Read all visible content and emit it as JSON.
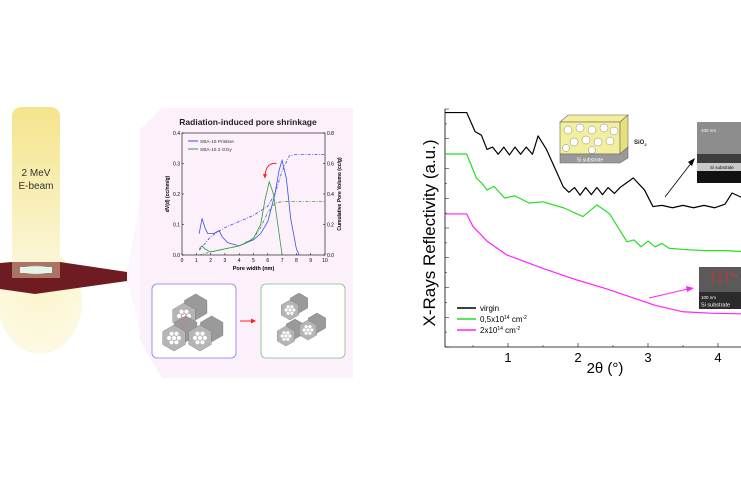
{
  "beam": {
    "line1": "2 MeV",
    "line2": "E-beam"
  },
  "colors": {
    "pristine": "#3a4ef0",
    "irradiated": "#2f9a3a",
    "virgin": "#000000",
    "low_fluence": "#22e022",
    "high_fluence": "#ff22ff",
    "arrow": "#ff2020",
    "panel": "#fcf0fa",
    "plane": "#6e1c22"
  },
  "chart_data": [
    {
      "type": "line",
      "title": "Radiation-induced pore shrinkage",
      "xlabel": "Pore width (nm)",
      "ylabel": "dV(d) (cc/nm/g)",
      "y2label": "Cumulative Pore Volume (cc/g)",
      "xlim": [
        0,
        10
      ],
      "ylim": [
        0,
        0.4
      ],
      "y2lim": [
        0,
        0.8
      ],
      "xticks": [
        "0",
        "1",
        "2",
        "3",
        "4",
        "5",
        "6",
        "7",
        "8",
        "9",
        "10"
      ],
      "yticks": [
        "0.0",
        "0.1",
        "0.2",
        "0.3",
        "0.4"
      ],
      "y2ticks": [
        "0.0",
        "0.2",
        "0.4",
        "0.6",
        "0.8"
      ],
      "legend_placement": "top-left",
      "series": [
        {
          "name": "SBA-15 Pristine",
          "axis": "left",
          "style": "solid",
          "color": "#3a4ef0",
          "x": [
            1.2,
            1.4,
            1.6,
            1.8,
            2.2,
            2.6,
            2.8,
            3.2,
            4,
            4.5,
            5,
            5.5,
            6,
            6.5,
            6.8,
            7,
            7.3,
            7.6,
            8,
            8.2
          ],
          "y": [
            0.07,
            0.12,
            0.09,
            0.07,
            0.07,
            0.08,
            0.06,
            0.04,
            0.03,
            0.04,
            0.05,
            0.07,
            0.11,
            0.2,
            0.28,
            0.31,
            0.25,
            0.12,
            0.02,
            0
          ]
        },
        {
          "name": "SBA-15 2 GGy",
          "axis": "left",
          "style": "solid",
          "color": "#2f9a3a",
          "x": [
            1.2,
            1.4,
            1.6,
            2,
            3,
            4,
            4.5,
            5,
            5.5,
            5.8,
            6.1,
            6.4,
            6.7,
            7
          ],
          "y": [
            0.02,
            0.03,
            0.02,
            0.01,
            0.02,
            0.03,
            0.04,
            0.055,
            0.1,
            0.18,
            0.24,
            0.2,
            0.1,
            0
          ]
        },
        {
          "axis": "right",
          "style": "dash-dot",
          "color": "#3a4ef0",
          "x": [
            1.2,
            2,
            3,
            4,
            5,
            6,
            6.5,
            7,
            7.5,
            8,
            10
          ],
          "y": [
            0.03,
            0.12,
            0.18,
            0.22,
            0.26,
            0.32,
            0.4,
            0.55,
            0.65,
            0.66,
            0.66
          ]
        },
        {
          "axis": "right",
          "style": "dash-dot",
          "color": "#2f9a3a",
          "x": [
            1.2,
            2,
            3,
            4,
            5,
            5.5,
            6,
            6.5,
            7,
            10
          ],
          "y": [
            0,
            0.02,
            0.04,
            0.06,
            0.11,
            0.18,
            0.28,
            0.34,
            0.35,
            0.35
          ]
        }
      ]
    },
    {
      "type": "line",
      "xlabel": "2θ (°)",
      "ylabel": "X-Rays Reflectivity  (a.u.)",
      "xlim": [
        0.1,
        4.4
      ],
      "ylim": [
        0,
        10
      ],
      "yscale": "log (unlabeled, arbitrary offsets)",
      "xticks": [
        "1",
        "2",
        "3",
        "4"
      ],
      "legend_placement": "bottom-left",
      "series": [
        {
          "name": "virgin",
          "color": "#000000",
          "x": [
            0.1,
            0.41,
            0.53,
            0.62,
            0.7,
            0.78,
            0.86,
            0.94,
            1.02,
            1.1,
            1.18,
            1.26,
            1.35,
            1.43,
            1.55,
            1.79,
            1.87,
            1.95,
            2.03,
            2.11,
            2.19,
            2.27,
            2.35,
            2.43,
            2.52,
            2.6,
            2.79,
            2.95,
            3.07,
            3.2,
            3.35,
            3.5,
            3.65,
            3.8,
            3.95,
            4.1,
            4.2,
            4.4
          ],
          "y": [
            9.85,
            9.85,
            9.05,
            8.9,
            8.3,
            8.4,
            8.1,
            8.4,
            8.07,
            8.4,
            8.1,
            8.4,
            8.1,
            8.87,
            8.3,
            6.73,
            6.5,
            6.7,
            6.38,
            6.7,
            6.4,
            6.7,
            6.4,
            6.7,
            6.45,
            6.7,
            7.1,
            6.6,
            5.9,
            5.95,
            5.85,
            5.95,
            5.85,
            5.95,
            5.85,
            6.0,
            6.47,
            6.2
          ]
        },
        {
          "sup_name": [
            "0,5x10",
            "14",
            " cm",
            "-2"
          ],
          "color": "#22e022",
          "x": [
            0.1,
            0.41,
            0.55,
            0.62,
            0.7,
            0.8,
            0.95,
            1.1,
            1.3,
            1.5,
            1.8,
            2.07,
            2.27,
            2.45,
            2.7,
            2.8,
            2.9,
            3.0,
            3.1,
            3.2,
            3.3,
            3.5,
            3.8,
            4.1,
            4.4
          ],
          "y": [
            8.11,
            8.11,
            7.09,
            6.9,
            6.6,
            6.75,
            6.26,
            6.35,
            6.05,
            6.1,
            5.84,
            5.48,
            5.97,
            5.6,
            4.42,
            4.5,
            4.21,
            4.45,
            4.21,
            4.35,
            4.15,
            4.1,
            4.05,
            4.05,
            4.0
          ]
        },
        {
          "sup_name": [
            "2x10",
            "14",
            " cm",
            "-2"
          ],
          "color": "#ff22ff",
          "x": [
            0.1,
            0.41,
            0.5,
            0.7,
            0.98,
            1.5,
            1.98,
            2.4,
            2.79,
            3.1,
            3.5,
            3.9,
            4.4
          ],
          "y": [
            5.59,
            5.59,
            5.06,
            4.45,
            3.87,
            3.3,
            2.82,
            2.45,
            2.06,
            1.75,
            1.48,
            1.42,
            1.39
          ]
        }
      ]
    }
  ],
  "insets": {
    "sio2_label": "SiO",
    "sio2_sub": "2",
    "substrate_label": "Si substrate",
    "sem_top_scale": "100 nm",
    "sem_top_label": "Si substrate",
    "sem_bottom_scale": "100 nm",
    "sem_bottom_label": "Si substrate",
    "sem_bottom_au": "Au"
  }
}
